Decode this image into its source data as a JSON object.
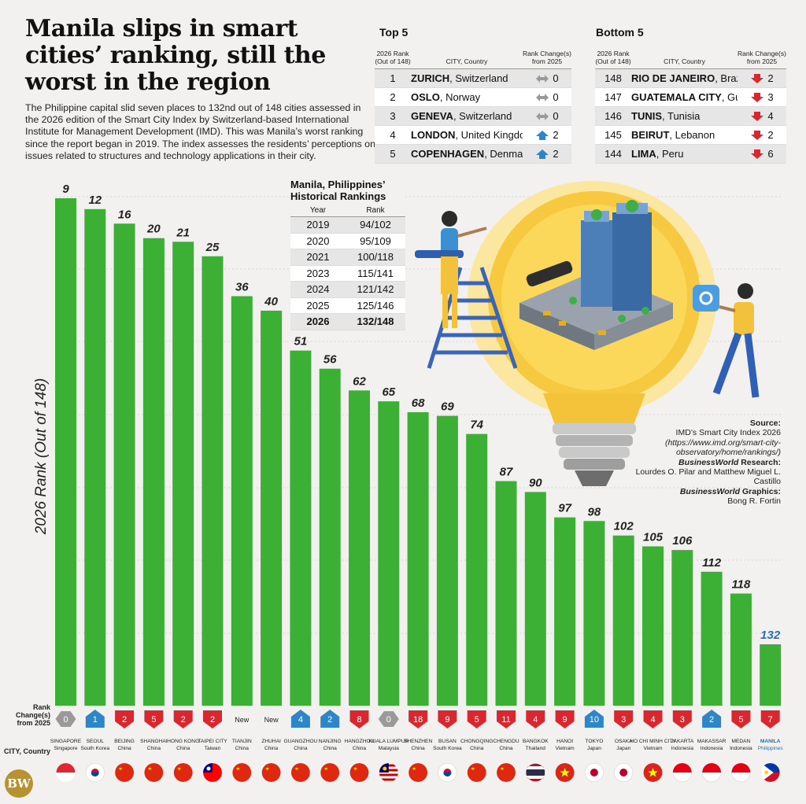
{
  "title": "Manila slips in smart cities’ ranking, still the worst in the region",
  "intro": "The Philippine capital slid seven places to 132nd out of 148 cities assessed in the 2026 edition of the Smart City Index by Switzerland-based International Institute for Management Development (IMD). This was Manila’s worst ranking since the report began in 2019. The index assesses the residents’ perceptions on issues related to structures and technology applications in their city.",
  "top5": {
    "title": "Top 5",
    "headers": {
      "rank": "2026 Rank (Out of 148)",
      "city": "CITY, Country",
      "change": "Rank Change(s) from 2025"
    },
    "rows": [
      {
        "rank": "1",
        "city": "ZURICH",
        "country": "Switzerland",
        "dir": "same",
        "change": "0"
      },
      {
        "rank": "2",
        "city": "OSLO",
        "country": "Norway",
        "dir": "same",
        "change": "0"
      },
      {
        "rank": "3",
        "city": "GENEVA",
        "country": "Switzerland",
        "dir": "same",
        "change": "0"
      },
      {
        "rank": "4",
        "city": "LONDON",
        "country": "United Kingdom",
        "dir": "up",
        "change": "2"
      },
      {
        "rank": "5",
        "city": "COPENHAGEN",
        "country": "Denmark",
        "dir": "up",
        "change": "2"
      }
    ]
  },
  "bottom5": {
    "title": "Bottom 5",
    "headers": {
      "rank": "2026 Rank (Out of 148)",
      "city": "CITY, Country",
      "change": "Rank Change(s) from 2025"
    },
    "rows": [
      {
        "rank": "148",
        "city": "RIO DE JANEIRO",
        "country": "Brazil",
        "dir": "down",
        "change": "2"
      },
      {
        "rank": "147",
        "city": "GUATEMALA CITY",
        "country": "Guatemala",
        "dir": "down",
        "change": "3"
      },
      {
        "rank": "146",
        "city": "TUNIS",
        "country": "Tunisia",
        "dir": "down",
        "change": "4"
      },
      {
        "rank": "145",
        "city": "BEIRUT",
        "country": "Lebanon",
        "dir": "down",
        "change": "2"
      },
      {
        "rank": "144",
        "city": "LIMA",
        "country": "Peru",
        "dir": "down",
        "change": "6"
      }
    ]
  },
  "historical": {
    "title": "Manila, Philippines’ Historical Rankings",
    "headers": {
      "year": "Year",
      "rank": "Rank"
    },
    "rows": [
      {
        "year": "2019",
        "rank": "94/102"
      },
      {
        "year": "2020",
        "rank": "95/109"
      },
      {
        "year": "2021",
        "rank": "100/118"
      },
      {
        "year": "2023",
        "rank": "115/141"
      },
      {
        "year": "2024",
        "rank": "121/142"
      },
      {
        "year": "2025",
        "rank": "125/146"
      },
      {
        "year": "2026",
        "rank": "132/148"
      }
    ]
  },
  "source": {
    "label": "Source:",
    "text": "IMD’s Smart City Index 2026",
    "url": "(https://www.imd.org/smart-city-observatory/home/rankings/)",
    "research_label_brand": "BusinessWorld",
    "research_label": " Research:",
    "research": "Lourdes O. Pilar and Matthew Miguel L. Castillo",
    "graphics_label_brand": "BusinessWorld",
    "graphics_label": " Graphics:",
    "graphics": "Bong R. Fortin"
  },
  "logo": "BW",
  "row_labels": {
    "change": "Rank Change(s) from 2025",
    "city": "CITY, Country"
  },
  "colors": {
    "bar": "#3bb034",
    "highlight_label": "#2a6fb6",
    "up": "#2f86c6",
    "down": "#d8272e",
    "same": "#9a9a9a"
  },
  "chart_data": {
    "type": "bar",
    "ylabel": "2026 Rank (Out of 148)",
    "y_inverted": true,
    "ylim": [
      1,
      148
    ],
    "grid": true,
    "categories": [
      "SINGAPORE",
      "SEOUL",
      "BEIJING",
      "SHANGHAI",
      "HONG KONG",
      "TAIPEI CITY",
      "TIANJIN",
      "ZHUHAI",
      "GUANGZHOU",
      "NANJING",
      "HANGZHOU",
      "KUALA LUMPUR",
      "SHENZHEN",
      "BUSAN",
      "CHONGQING",
      "CHENGDU",
      "BANGKOK",
      "HANOI",
      "TOKYO",
      "OSAKA",
      "HO CHI MINH CITY",
      "JAKARTA",
      "MAKASSAR",
      "MEDAN",
      "MANILA"
    ],
    "countries": [
      "Singapore",
      "South Korea",
      "China",
      "China",
      "China",
      "Taiwan",
      "China",
      "China",
      "China",
      "China",
      "China",
      "Malaysia",
      "China",
      "South Korea",
      "China",
      "China",
      "Thailand",
      "Vietnam",
      "Japan",
      "Japan",
      "Vietnam",
      "Indonesia",
      "Indonesia",
      "Indonesia",
      "Philippines"
    ],
    "values": [
      9,
      12,
      16,
      20,
      21,
      25,
      36,
      40,
      51,
      56,
      62,
      65,
      68,
      69,
      74,
      87,
      90,
      97,
      98,
      102,
      105,
      106,
      112,
      118,
      132
    ],
    "change_dir": [
      "same",
      "up",
      "down",
      "down",
      "down",
      "down",
      "new",
      "new",
      "up",
      "up",
      "down",
      "same",
      "down",
      "down",
      "down",
      "down",
      "down",
      "down",
      "up",
      "down",
      "down",
      "down",
      "up",
      "down",
      "down"
    ],
    "change": [
      "0",
      "1",
      "2",
      "5",
      "2",
      "2",
      "New",
      "New",
      "4",
      "2",
      "8",
      "0",
      "18",
      "9",
      "5",
      "11",
      "4",
      "9",
      "10",
      "3",
      "4",
      "3",
      "2",
      "5",
      "7"
    ],
    "highlight": "MANILA"
  }
}
